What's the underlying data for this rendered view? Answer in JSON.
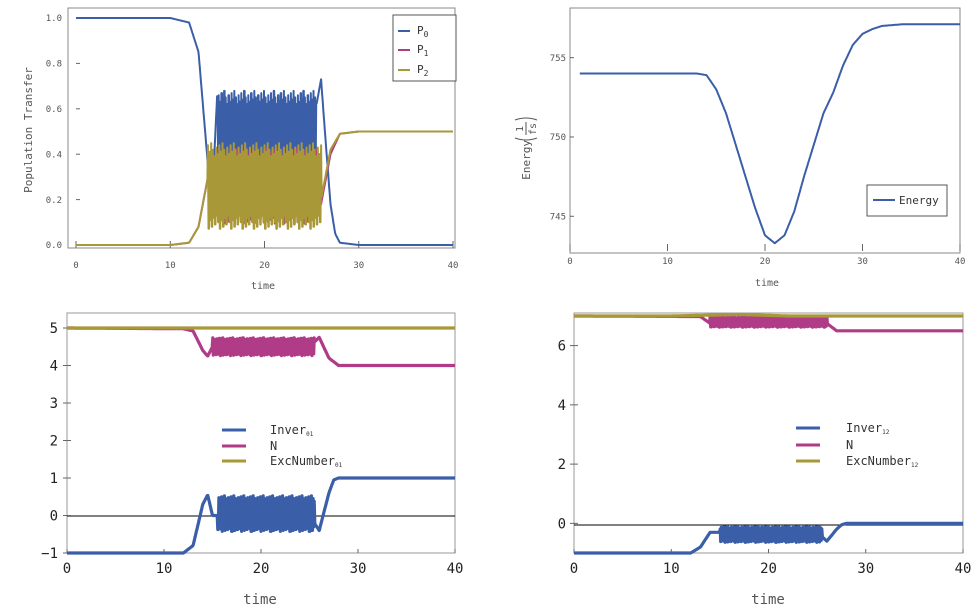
{
  "chart_data": [
    {
      "type": "line",
      "xlabel": "time",
      "ylabel": "Population Transfer",
      "xlim": [
        0,
        40
      ],
      "ylim": [
        0,
        1
      ],
      "xticks": [
        "0",
        "10",
        "20",
        "30",
        "40"
      ],
      "yticks": [
        "0.0",
        "0.2",
        "0.4",
        "0.6",
        "0.8",
        "1.0"
      ],
      "legend_position": "top-right",
      "series": [
        {
          "name": "P0",
          "color": "#3a5fa8",
          "x": [
            0,
            10,
            12,
            13,
            13.5,
            14,
            14.5,
            15,
            16,
            20,
            25,
            26,
            26.5,
            27,
            27.5,
            28,
            30,
            40
          ],
          "y": [
            1.0,
            1.0,
            0.98,
            0.85,
            0.6,
            0.35,
            0.25,
            0.68,
            0.5,
            0.5,
            0.5,
            0.73,
            0.45,
            0.18,
            0.05,
            0.01,
            0.0,
            0.0
          ],
          "oscillation": {
            "from": 15,
            "to": 25.5,
            "min": 0.33,
            "max": 0.65
          }
        },
        {
          "name": "P1",
          "color": "#b03b87",
          "x": [
            0,
            10,
            12,
            13,
            14,
            15,
            25,
            26,
            27,
            28,
            30,
            40
          ],
          "y": [
            0.0,
            0.0,
            0.01,
            0.08,
            0.3,
            0.25,
            0.25,
            0.18,
            0.4,
            0.49,
            0.5,
            0.5
          ],
          "oscillation": {
            "from": 15,
            "to": 25.5,
            "min": 0.12,
            "max": 0.4
          }
        },
        {
          "name": "P2",
          "color": "#a89838",
          "x": [
            0,
            10,
            12,
            13,
            14,
            15,
            25,
            26,
            27,
            28,
            30,
            40
          ],
          "y": [
            0.0,
            0.0,
            0.01,
            0.08,
            0.3,
            0.25,
            0.25,
            0.2,
            0.42,
            0.49,
            0.5,
            0.5
          ],
          "oscillation": {
            "from": 14,
            "to": 26,
            "min": 0.1,
            "max": 0.42
          }
        }
      ]
    },
    {
      "type": "line",
      "xlabel": "time",
      "ylabel": "Energy",
      "ylabel_unit": "1/fs",
      "xlim": [
        0,
        40
      ],
      "ylim": [
        743,
        757.5
      ],
      "xticks": [
        "0",
        "10",
        "20",
        "30",
        "40"
      ],
      "yticks": [
        "745",
        "750",
        "755"
      ],
      "legend_position": "bottom-right",
      "series": [
        {
          "name": "Energy",
          "color": "#3a5fa8",
          "x": [
            1,
            13,
            14,
            15,
            16,
            17,
            18,
            19,
            20,
            21,
            22,
            23,
            24,
            25,
            26,
            27,
            28,
            29,
            30,
            31,
            32,
            34,
            36,
            40
          ],
          "y": [
            754,
            754,
            753.9,
            753,
            751.5,
            749.5,
            747.5,
            745.5,
            743.8,
            743.3,
            743.8,
            745.3,
            747.5,
            749.5,
            751.5,
            752.8,
            754.5,
            755.8,
            756.5,
            756.8,
            757.0,
            757.1,
            757.1,
            757.1
          ]
        }
      ]
    },
    {
      "type": "line",
      "xlabel": "time",
      "xlim": [
        0,
        40
      ],
      "ylim": [
        -1,
        5.4
      ],
      "xticks": [
        "0",
        "10",
        "20",
        "30",
        "40"
      ],
      "yticks": [
        "−1",
        "0",
        "1",
        "2",
        "3",
        "4",
        "5"
      ],
      "legend_position": "center",
      "series": [
        {
          "name": "Inver01",
          "color": "#3a5fa8",
          "x": [
            0,
            12,
            13,
            14,
            14.5,
            15,
            25,
            26,
            27,
            27.5,
            28,
            30,
            40
          ],
          "y": [
            -1,
            -1,
            -0.8,
            0.3,
            0.55,
            0.0,
            0.0,
            -0.4,
            0.6,
            0.95,
            1.0,
            1.0,
            1.0
          ],
          "oscillation": {
            "from": 15.5,
            "to": 25.5,
            "min": -0.35,
            "max": 0.45
          }
        },
        {
          "name": "N",
          "color": "#b03b87",
          "x": [
            0,
            12,
            13,
            14,
            14.5,
            15,
            25,
            26,
            27,
            28,
            40
          ],
          "y": [
            5.0,
            4.98,
            4.92,
            4.4,
            4.25,
            4.5,
            4.5,
            4.75,
            4.2,
            4.0,
            4.0
          ],
          "oscillation": {
            "from": 15,
            "to": 25.5,
            "min": 4.3,
            "max": 4.7
          }
        },
        {
          "name": "ExcNumber01",
          "color": "#a89838",
          "x": [
            0,
            40
          ],
          "y": [
            5.0,
            5.0
          ]
        }
      ]
    },
    {
      "type": "line",
      "xlabel": "time",
      "xlim": [
        0,
        40
      ],
      "ylim": [
        -1,
        7.1
      ],
      "xticks": [
        "0",
        "10",
        "20",
        "30",
        "40"
      ],
      "yticks": [
        "0",
        "2",
        "4",
        "6"
      ],
      "legend_position": "center",
      "series": [
        {
          "name": "Inver12",
          "color": "#3a5fa8",
          "x": [
            0,
            12,
            13,
            14,
            15,
            25,
            26,
            27,
            27.5,
            28,
            40
          ],
          "y": [
            -1,
            -1,
            -0.8,
            -0.3,
            -0.3,
            -0.3,
            -0.6,
            -0.2,
            -0.05,
            0.0,
            0.0
          ],
          "oscillation": {
            "from": 15,
            "to": 25.5,
            "min": -0.6,
            "max": -0.15
          }
        },
        {
          "name": "N",
          "color": "#b03b87",
          "x": [
            0,
            13,
            14,
            15,
            25,
            26,
            27,
            40
          ],
          "y": [
            7.0,
            6.98,
            6.75,
            6.8,
            6.8,
            6.75,
            6.5,
            6.5
          ],
          "oscillation": {
            "from": 14,
            "to": 26,
            "min": 6.65,
            "max": 6.95
          }
        },
        {
          "name": "ExcNumber12",
          "color": "#a89838",
          "x": [
            0,
            10,
            17,
            22,
            40
          ],
          "y": [
            7.0,
            7.0,
            7.05,
            7.0,
            7.0
          ]
        }
      ]
    }
  ],
  "legend_labels": {
    "p0_base": "P",
    "p0_sub": "0",
    "p1_base": "P",
    "p1_sub": "1",
    "p2_base": "P",
    "p2_sub": "2",
    "energy": "Energy",
    "inver01_base": "Inver",
    "inver01_sub": "01",
    "n": "N",
    "exc01_base": "ExcNumber",
    "exc01_sub": "01",
    "inver12_base": "Inver",
    "inver12_sub": "12",
    "exc12_base": "ExcNumber",
    "exc12_sub": "12"
  },
  "energy_unit": {
    "prefix": "Energy",
    "numerator": "1",
    "denominator": "fs"
  }
}
